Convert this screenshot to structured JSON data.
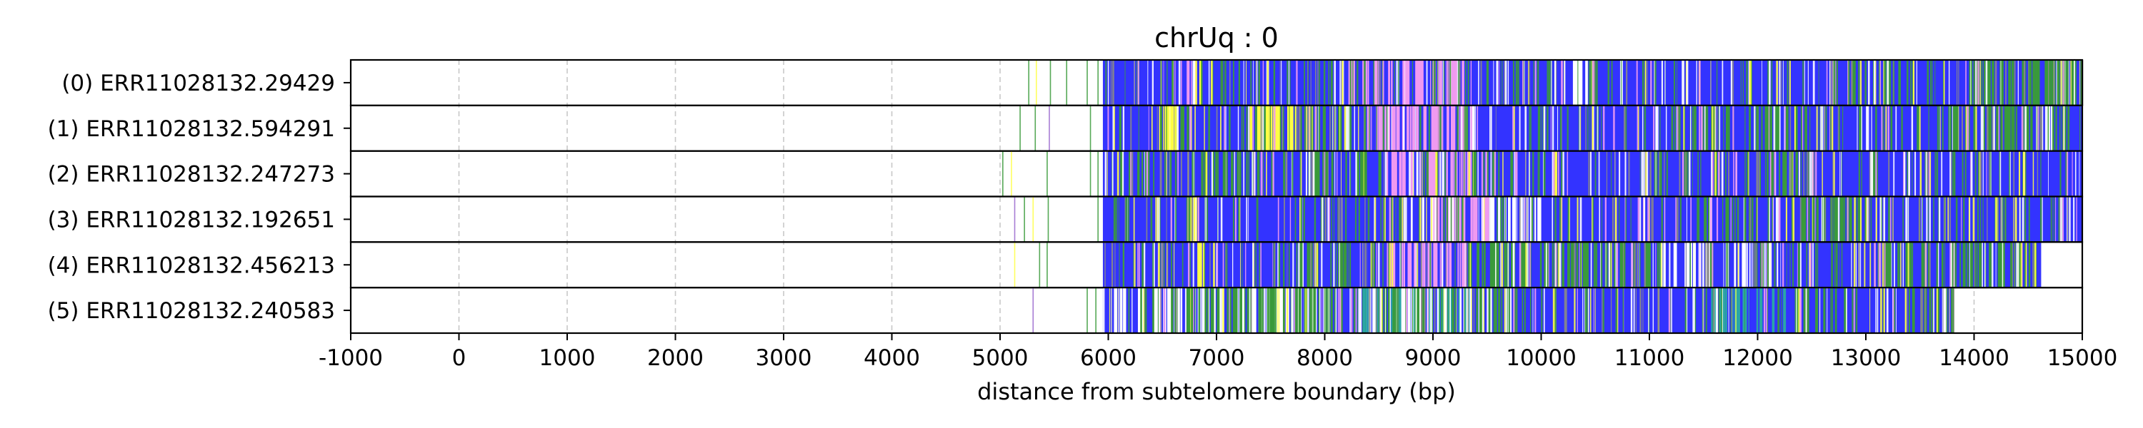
{
  "chart_data": {
    "type": "read-track-plot",
    "title": "chrUq : 0",
    "xlabel": "distance from subtelomere boundary (bp)",
    "ylabel": "",
    "xlim": [
      -1000,
      15000
    ],
    "x_ticks": [
      -1000,
      0,
      1000,
      2000,
      3000,
      4000,
      5000,
      6000,
      7000,
      8000,
      9000,
      10000,
      11000,
      12000,
      13000,
      14000,
      15000
    ],
    "x_tick_labels": [
      "-1000",
      "0",
      "1000",
      "2000",
      "3000",
      "4000",
      "5000",
      "6000",
      "7000",
      "8000",
      "9000",
      "10000",
      "11000",
      "12000",
      "13000",
      "14000",
      "15000"
    ],
    "grid": {
      "x": true,
      "style": "dashed",
      "color": "#c8c8c8"
    },
    "colors": {
      "base": "#3333ff",
      "green": "#3a9a3a",
      "yellow": "#ffff44",
      "violet": "#f09af0",
      "white": "#ffffff",
      "teal": "#2aa6a6",
      "purple": "#9966cc",
      "grey": "#888888"
    },
    "reads": [
      {
        "label": "(0) ERR11028132.29429",
        "dense_start": 5950,
        "end": 15000,
        "sparse_marks": [
          [
            5260,
            "green"
          ],
          [
            5330,
            "yellow"
          ],
          [
            5460,
            "green"
          ],
          [
            5610,
            "green"
          ],
          [
            5800,
            "green"
          ],
          [
            5900,
            "green"
          ]
        ],
        "segments": [
          [
            6700,
            6830,
            "violet",
            0.45
          ],
          [
            6800,
            6860,
            "yellow",
            0.8
          ],
          [
            8150,
            8850,
            "violet",
            0.35
          ],
          [
            8850,
            9350,
            "violet",
            0.55
          ],
          [
            10250,
            10480,
            "white",
            0.6
          ],
          [
            10470,
            10500,
            "grey",
            0.8
          ],
          [
            12800,
            13300,
            "green",
            0.25
          ],
          [
            13950,
            14900,
            "green",
            0.5
          ]
        ]
      },
      {
        "label": "(1) ERR11028132.594291",
        "dense_start": 5950,
        "end": 15000,
        "sparse_marks": [
          [
            5180,
            "green"
          ],
          [
            5320,
            "green"
          ],
          [
            5450,
            "purple"
          ],
          [
            5830,
            "green"
          ]
        ],
        "segments": [
          [
            6450,
            6680,
            "green",
            0.4
          ],
          [
            6500,
            6650,
            "yellow",
            0.55
          ],
          [
            7300,
            7750,
            "yellow",
            0.6
          ],
          [
            7750,
            8300,
            "green",
            0.35
          ],
          [
            8350,
            9300,
            "violet",
            0.6
          ],
          [
            9300,
            9400,
            "white",
            0.5
          ],
          [
            11200,
            12500,
            "green",
            0.2
          ],
          [
            13700,
            14900,
            "green",
            0.35
          ]
        ]
      },
      {
        "label": "(2) ERR11028132.247273",
        "dense_start": 5950,
        "end": 15000,
        "sparse_marks": [
          [
            5020,
            "green"
          ],
          [
            5100,
            "yellow"
          ],
          [
            5430,
            "green"
          ],
          [
            5830,
            "green"
          ],
          [
            5900,
            "green"
          ]
        ],
        "segments": [
          [
            6000,
            6400,
            "green",
            0.25
          ],
          [
            6700,
            7400,
            "green",
            0.3
          ],
          [
            7800,
            8500,
            "green",
            0.25
          ],
          [
            8550,
            9350,
            "violet",
            0.55
          ],
          [
            9350,
            9800,
            "green",
            0.2
          ],
          [
            11300,
            12500,
            "green",
            0.15
          ]
        ]
      },
      {
        "label": "(3) ERR11028132.192651",
        "dense_start": 5950,
        "end": 15000,
        "sparse_marks": [
          [
            5130,
            "purple"
          ],
          [
            5220,
            "green"
          ],
          [
            5300,
            "yellow"
          ],
          [
            5440,
            "green"
          ],
          [
            5900,
            "green"
          ]
        ],
        "segments": [
          [
            6700,
            6850,
            "yellow",
            0.6
          ],
          [
            8750,
            9000,
            "white",
            0.35
          ],
          [
            9000,
            9500,
            "violet",
            0.6
          ],
          [
            9500,
            10000,
            "white",
            0.45
          ],
          [
            11500,
            12000,
            "green",
            0.3
          ],
          [
            12400,
            13000,
            "green",
            0.4
          ]
        ]
      },
      {
        "label": "(4) ERR11028132.456213",
        "dense_start": 5950,
        "end": 14620,
        "sparse_marks": [
          [
            5130,
            "yellow"
          ],
          [
            5360,
            "green"
          ],
          [
            5430,
            "green"
          ]
        ],
        "segments": [
          [
            6800,
            6900,
            "yellow",
            0.65
          ],
          [
            7700,
            8300,
            "green",
            0.3
          ],
          [
            8600,
            9300,
            "violet",
            0.45
          ],
          [
            9300,
            9900,
            "green",
            0.4
          ],
          [
            9900,
            11000,
            "green",
            0.35
          ],
          [
            11000,
            12200,
            "white",
            0.25
          ],
          [
            13100,
            14600,
            "green",
            0.4
          ]
        ]
      },
      {
        "label": "(5) ERR11028132.240583",
        "dense_start": 5950,
        "end": 13810,
        "sparse_marks": [
          [
            5300,
            "purple"
          ],
          [
            5800,
            "green"
          ],
          [
            5880,
            "green"
          ]
        ],
        "segments": [
          [
            6000,
            9350,
            "white",
            0.5
          ],
          [
            6000,
            9350,
            "green",
            0.2
          ],
          [
            8200,
            9350,
            "teal",
            0.25
          ],
          [
            9350,
            9900,
            "green",
            0.25
          ],
          [
            11500,
            12300,
            "teal",
            0.35
          ],
          [
            12300,
            12800,
            "green",
            0.3
          ],
          [
            13200,
            13800,
            "green",
            0.25
          ]
        ]
      }
    ]
  }
}
